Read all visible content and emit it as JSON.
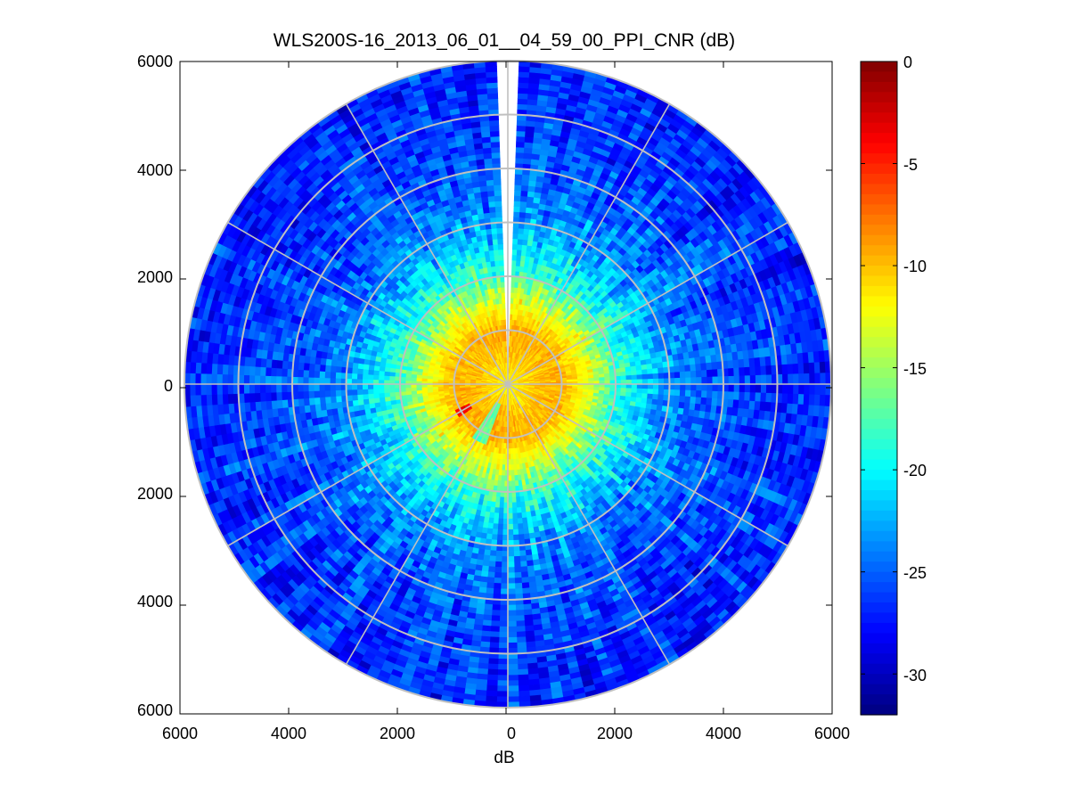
{
  "chart_data": {
    "type": "heatmap",
    "subtype": "polar-ppi",
    "title": "WLS200S-16_2013_06_01__04_59_00_PPI_CNR (dB)",
    "xlabel": "dB",
    "ylabel": "",
    "xlim": [
      -6000,
      6000
    ],
    "ylim": [
      -6000,
      6000
    ],
    "x_ticks": [
      "6000",
      "4000",
      "2000",
      "0",
      "2000",
      "4000",
      "6000"
    ],
    "y_ticks": [
      "6000",
      "4000",
      "2000",
      "0",
      "2000",
      "4000",
      "6000"
    ],
    "polar_grid": {
      "rings": [
        1000,
        2000,
        3000,
        4000,
        5000,
        6000
      ],
      "spoke_step_deg": 30,
      "color": "#c0c0c0"
    },
    "colorbar": {
      "colormap": "jet",
      "clim": [
        -32,
        0
      ],
      "ticks": [
        "0",
        "-5",
        "-10",
        "-15",
        "-20",
        "-25",
        "-30"
      ],
      "tick_values": [
        0,
        -5,
        -10,
        -15,
        -20,
        -25,
        -30
      ]
    },
    "cnr_profile": {
      "range_m": [
        0,
        300,
        600,
        1000,
        1500,
        2000,
        2500,
        3000,
        4000,
        5000,
        6000
      ],
      "cnr_db": [
        -12,
        -11,
        -10,
        -9.5,
        -13,
        -18,
        -21,
        -23.5,
        -25.5,
        -26.5,
        -27
      ]
    },
    "missing_sector_deg": [
      -1.5,
      1.5
    ],
    "grid": true
  }
}
